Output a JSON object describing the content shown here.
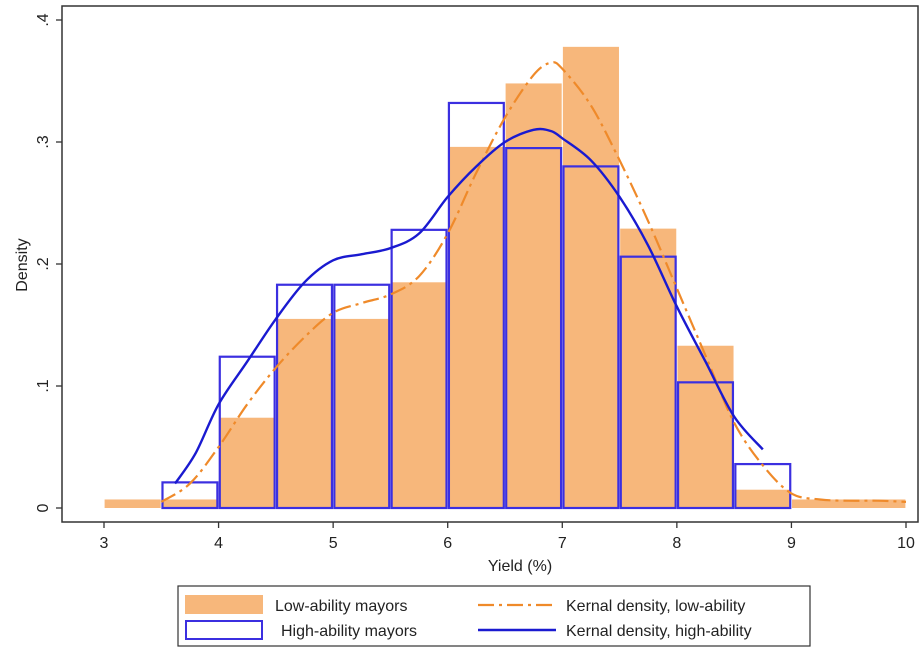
{
  "chart_data": {
    "type": "bar",
    "xlabel": "Yield (%)",
    "ylabel": "Density",
    "xlim": [
      3,
      10
    ],
    "ylim": [
      0,
      0.4
    ],
    "x_ticks": [
      {
        "v": 3,
        "label": "3"
      },
      {
        "v": 4,
        "label": "4"
      },
      {
        "v": 5,
        "label": "5"
      },
      {
        "v": 6,
        "label": "6"
      },
      {
        "v": 7,
        "label": "7"
      },
      {
        "v": 8,
        "label": "8"
      },
      {
        "v": 9,
        "label": "9"
      },
      {
        "v": 10,
        "label": "10"
      }
    ],
    "y_ticks": [
      {
        "v": 0,
        "label": "0"
      },
      {
        "v": 0.1,
        "label": ".1"
      },
      {
        "v": 0.2,
        "label": ".2"
      },
      {
        "v": 0.3,
        "label": ".3"
      },
      {
        "v": 0.4,
        "label": ".4"
      }
    ],
    "grid": false,
    "legend_position": "bottom",
    "colors": {
      "low_fill": "#f7b77b",
      "high_outline": "#3b2fe0",
      "low_kde": "#ef8a2a",
      "high_kde": "#1a1ad0"
    },
    "low_bars": [
      {
        "x0": 3.0,
        "x1": 3.5,
        "y": 0.007
      },
      {
        "x0": 3.5,
        "x1": 4.0,
        "y": 0.007
      },
      {
        "x0": 4.0,
        "x1": 4.5,
        "y": 0.074
      },
      {
        "x0": 4.5,
        "x1": 5.0,
        "y": 0.155
      },
      {
        "x0": 5.0,
        "x1": 5.5,
        "y": 0.155
      },
      {
        "x0": 5.5,
        "x1": 6.0,
        "y": 0.185
      },
      {
        "x0": 6.0,
        "x1": 6.5,
        "y": 0.296
      },
      {
        "x0": 6.5,
        "x1": 7.0,
        "y": 0.348
      },
      {
        "x0": 7.0,
        "x1": 7.5,
        "y": 0.378
      },
      {
        "x0": 7.5,
        "x1": 8.0,
        "y": 0.229
      },
      {
        "x0": 8.0,
        "x1": 8.5,
        "y": 0.133
      },
      {
        "x0": 8.5,
        "x1": 9.0,
        "y": 0.015
      },
      {
        "x0": 9.0,
        "x1": 10.0,
        "y": 0.007
      }
    ],
    "high_bars": [
      {
        "x0": 3.5,
        "x1": 4.0,
        "y": 0.021
      },
      {
        "x0": 4.0,
        "x1": 4.5,
        "y": 0.124
      },
      {
        "x0": 4.5,
        "x1": 5.0,
        "y": 0.183
      },
      {
        "x0": 5.0,
        "x1": 5.5,
        "y": 0.183
      },
      {
        "x0": 5.5,
        "x1": 6.0,
        "y": 0.228
      },
      {
        "x0": 6.0,
        "x1": 6.5,
        "y": 0.332
      },
      {
        "x0": 6.5,
        "x1": 7.0,
        "y": 0.295
      },
      {
        "x0": 7.0,
        "x1": 7.5,
        "y": 0.28
      },
      {
        "x0": 7.5,
        "x1": 8.0,
        "y": 0.206
      },
      {
        "x0": 8.0,
        "x1": 8.5,
        "y": 0.103
      },
      {
        "x0": 8.5,
        "x1": 9.0,
        "y": 0.036
      }
    ],
    "low_kde": {
      "x": [
        3.5,
        3.75,
        4.0,
        4.25,
        4.5,
        4.75,
        5.0,
        5.25,
        5.5,
        5.75,
        6.0,
        6.25,
        6.5,
        6.75,
        6.9,
        7.0,
        7.25,
        7.5,
        7.75,
        8.0,
        8.25,
        8.5,
        8.75,
        9.0,
        9.25,
        9.5,
        9.75,
        10.0
      ],
      "y": [
        0.005,
        0.02,
        0.05,
        0.085,
        0.115,
        0.14,
        0.16,
        0.168,
        0.175,
        0.19,
        0.225,
        0.275,
        0.32,
        0.355,
        0.365,
        0.36,
        0.33,
        0.285,
        0.235,
        0.18,
        0.125,
        0.07,
        0.035,
        0.012,
        0.007,
        0.006,
        0.006,
        0.005
      ]
    },
    "high_kde": {
      "x": [
        3.62,
        3.8,
        4.0,
        4.25,
        4.5,
        4.75,
        5.0,
        5.25,
        5.5,
        5.75,
        6.0,
        6.25,
        6.5,
        6.75,
        6.9,
        7.0,
        7.25,
        7.5,
        7.75,
        8.0,
        8.25,
        8.5,
        8.75
      ],
      "y": [
        0.02,
        0.045,
        0.085,
        0.12,
        0.155,
        0.185,
        0.203,
        0.208,
        0.213,
        0.225,
        0.255,
        0.28,
        0.3,
        0.31,
        0.309,
        0.303,
        0.285,
        0.255,
        0.215,
        0.165,
        0.12,
        0.075,
        0.048
      ]
    },
    "legend": [
      {
        "key": "low_fill",
        "label": "Low-ability mayors",
        "kind": "filled-box"
      },
      {
        "key": "low_kde",
        "label": "Kernal density, low-ability",
        "kind": "dashed-line"
      },
      {
        "key": "high_outline",
        "label": "High-ability mayors",
        "kind": "outline-box"
      },
      {
        "key": "high_kde",
        "label": "Kernal density, high-ability",
        "kind": "solid-line"
      }
    ]
  }
}
